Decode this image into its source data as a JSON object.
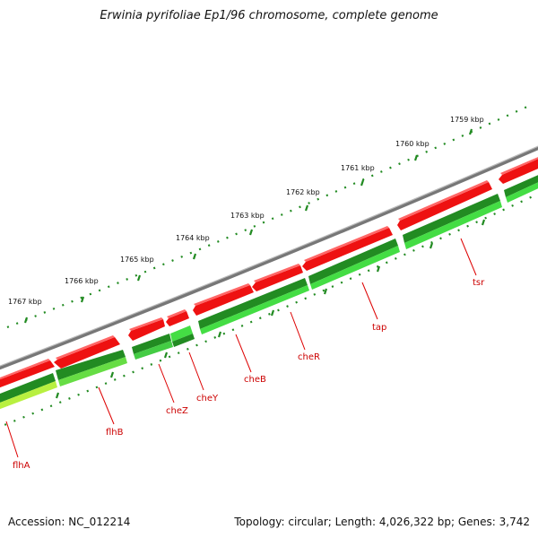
{
  "header": {
    "title": "Erwinia pyrifoliae Ep1/96 chromosome, complete genome"
  },
  "footer": {
    "accession": "Accession: NC_012214",
    "summary": "Topology: circular; Length: 4,026,322 bp; Genes: 3,742"
  },
  "colors": {
    "background": "#ffffff",
    "backbone": "#888888",
    "forward_gene": "#ee1111",
    "reverse_gene": "#22aa22",
    "reverse_gene_light": "#44dd44",
    "reverse_gene_yellow": "#b8f040",
    "tick": "#228b22",
    "gene_label": "#cc0000",
    "leader_line": "#dd0000"
  },
  "scale": {
    "ticks": [
      {
        "label": "1767 kbp"
      },
      {
        "label": "1766 kbp"
      },
      {
        "label": "1765 kbp"
      },
      {
        "label": "1764 kbp"
      },
      {
        "label": "1763 kbp"
      },
      {
        "label": "1762 kbp"
      },
      {
        "label": "1761 kbp"
      },
      {
        "label": "1760 kbp"
      },
      {
        "label": "1759 kbp"
      }
    ]
  },
  "genes": [
    {
      "name": "flhA"
    },
    {
      "name": "flhB"
    },
    {
      "name": "cheZ"
    },
    {
      "name": "cheY"
    },
    {
      "name": "cheB"
    },
    {
      "name": "cheR"
    },
    {
      "name": "tap"
    },
    {
      "name": "tsr"
    }
  ]
}
